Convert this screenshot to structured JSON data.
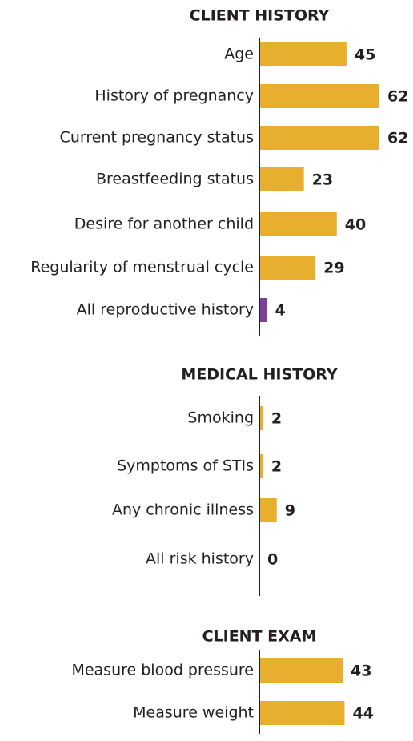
{
  "chart_data": [
    {
      "type": "bar",
      "orientation": "horizontal",
      "title": "CLIENT HISTORY",
      "categories": [
        "Age",
        "History of pregnancy",
        "Current pregnancy status",
        "Breastfeeding status",
        "Desire for another child",
        "Regularity of menstrual cycle",
        "All reproductive history"
      ],
      "values": [
        45,
        62,
        62,
        23,
        40,
        29,
        4
      ],
      "colors": [
        "#e8ae2e",
        "#e8ae2e",
        "#e8ae2e",
        "#e8ae2e",
        "#e8ae2e",
        "#e8ae2e",
        "#7b3f98"
      ]
    },
    {
      "type": "bar",
      "orientation": "horizontal",
      "title": "MEDICAL HISTORY",
      "categories": [
        "Smoking",
        "Symptoms of STIs",
        "Any chronic illness",
        "All risk history"
      ],
      "values": [
        2,
        2,
        9,
        0
      ],
      "colors": [
        "#e8ae2e",
        "#e8ae2e",
        "#e8ae2e",
        "#e8ae2e"
      ]
    },
    {
      "type": "bar",
      "orientation": "horizontal",
      "title": "CLIENT EXAM",
      "categories": [
        "Measure blood pressure",
        "Measure weight"
      ],
      "values": [
        43,
        44
      ],
      "colors": [
        "#e8ae2e",
        "#e8ae2e"
      ]
    }
  ]
}
